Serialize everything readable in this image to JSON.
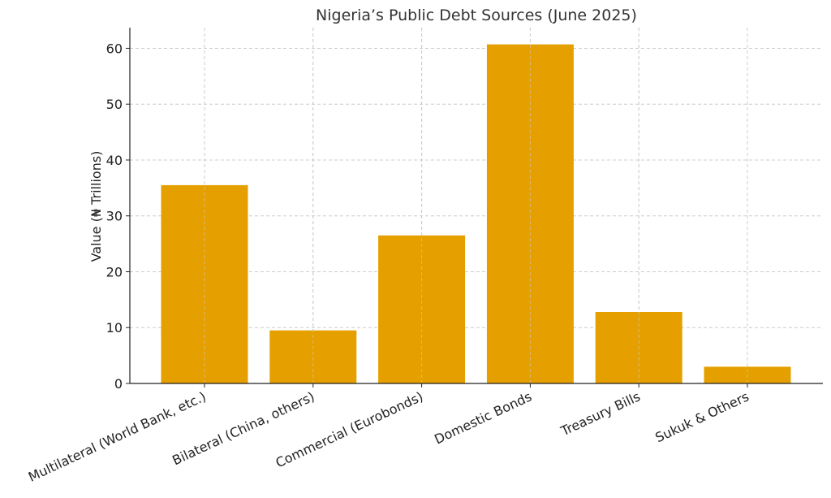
{
  "chart_data": {
    "type": "bar",
    "title": "Nigeria’s Public Debt Sources (June 2025)",
    "xlabel": "",
    "ylabel": "Value (₦ Trillions)",
    "categories": [
      "Multilateral (World Bank, etc.)",
      "Bilateral (China, others)",
      "Commercial (Eurobonds)",
      "Domestic Bonds",
      "Treasury Bills",
      "Sukuk & Others"
    ],
    "values": [
      35.5,
      9.5,
      26.5,
      60.7,
      12.8,
      3.0
    ],
    "ylim": [
      0,
      63.7
    ],
    "yticks": [
      0,
      10,
      20,
      30,
      40,
      50,
      60
    ],
    "grid": true,
    "bar_color": "#E5A000"
  }
}
